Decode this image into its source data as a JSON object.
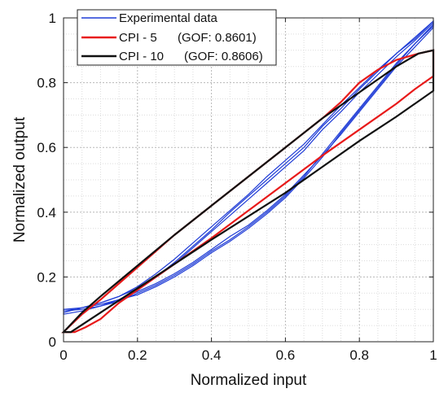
{
  "chart_data": {
    "type": "line",
    "xlabel": "Normalized input",
    "ylabel": "Normalized output",
    "xlim": [
      0,
      1
    ],
    "ylim": [
      0,
      1
    ],
    "xticks": [
      "0",
      "0.2",
      "0.4",
      "0.6",
      "0.8",
      "1"
    ],
    "yticks": [
      "0",
      "0.2",
      "0.4",
      "0.6",
      "0.8",
      "1"
    ],
    "grid": "major-and-minor-dotted",
    "legend_position": "top-left",
    "series": [
      {
        "name": "Experimental data",
        "color": "#1f3cd6",
        "loops": [
          {
            "up": [
              [
                0,
                0.095
              ],
              [
                0.05,
                0.1
              ],
              [
                0.1,
                0.11
              ],
              [
                0.15,
                0.125
              ],
              [
                0.2,
                0.15
              ],
              [
                0.25,
                0.175
              ],
              [
                0.3,
                0.205
              ],
              [
                0.35,
                0.24
              ],
              [
                0.4,
                0.28
              ],
              [
                0.45,
                0.315
              ],
              [
                0.5,
                0.355
              ],
              [
                0.55,
                0.4
              ],
              [
                0.6,
                0.45
              ],
              [
                0.65,
                0.51
              ],
              [
                0.7,
                0.58
              ],
              [
                0.75,
                0.65
              ],
              [
                0.8,
                0.72
              ],
              [
                0.85,
                0.79
              ],
              [
                0.9,
                0.86
              ],
              [
                0.95,
                0.92
              ],
              [
                1,
                0.98
              ]
            ],
            "down": [
              [
                1,
                0.99
              ],
              [
                0.95,
                0.94
              ],
              [
                0.9,
                0.89
              ],
              [
                0.85,
                0.835
              ],
              [
                0.8,
                0.78
              ],
              [
                0.75,
                0.72
              ],
              [
                0.7,
                0.665
              ],
              [
                0.65,
                0.6
              ],
              [
                0.6,
                0.55
              ],
              [
                0.55,
                0.5
              ],
              [
                0.5,
                0.45
              ],
              [
                0.45,
                0.4
              ],
              [
                0.4,
                0.345
              ],
              [
                0.35,
                0.295
              ],
              [
                0.3,
                0.245
              ],
              [
                0.25,
                0.2
              ],
              [
                0.2,
                0.16
              ],
              [
                0.15,
                0.13
              ],
              [
                0.1,
                0.11
              ],
              [
                0.05,
                0.1
              ],
              [
                0,
                0.1
              ]
            ]
          },
          {
            "up": [
              [
                0,
                0.085
              ],
              [
                0.05,
                0.095
              ],
              [
                0.1,
                0.11
              ],
              [
                0.15,
                0.13
              ],
              [
                0.2,
                0.155
              ],
              [
                0.25,
                0.18
              ],
              [
                0.3,
                0.21
              ],
              [
                0.35,
                0.245
              ],
              [
                0.4,
                0.285
              ],
              [
                0.45,
                0.325
              ],
              [
                0.5,
                0.36
              ],
              [
                0.55,
                0.405
              ],
              [
                0.6,
                0.455
              ],
              [
                0.65,
                0.515
              ],
              [
                0.7,
                0.575
              ],
              [
                0.75,
                0.64
              ],
              [
                0.8,
                0.71
              ],
              [
                0.85,
                0.78
              ],
              [
                0.9,
                0.85
              ],
              [
                0.95,
                0.91
              ],
              [
                1,
                0.97
              ]
            ],
            "down": [
              [
                1,
                0.985
              ],
              [
                0.95,
                0.93
              ],
              [
                0.9,
                0.88
              ],
              [
                0.85,
                0.825
              ],
              [
                0.8,
                0.77
              ],
              [
                0.75,
                0.71
              ],
              [
                0.7,
                0.655
              ],
              [
                0.65,
                0.59
              ],
              [
                0.6,
                0.54
              ],
              [
                0.55,
                0.49
              ],
              [
                0.5,
                0.44
              ],
              [
                0.45,
                0.39
              ],
              [
                0.4,
                0.34
              ],
              [
                0.35,
                0.29
              ],
              [
                0.3,
                0.24
              ],
              [
                0.25,
                0.2
              ],
              [
                0.2,
                0.165
              ],
              [
                0.15,
                0.14
              ],
              [
                0.1,
                0.12
              ],
              [
                0.05,
                0.105
              ],
              [
                0,
                0.09
              ]
            ]
          },
          {
            "up": [
              [
                0,
                0.1
              ],
              [
                0.05,
                0.105
              ],
              [
                0.1,
                0.115
              ],
              [
                0.15,
                0.13
              ],
              [
                0.2,
                0.145
              ],
              [
                0.25,
                0.17
              ],
              [
                0.3,
                0.2
              ],
              [
                0.35,
                0.235
              ],
              [
                0.4,
                0.275
              ],
              [
                0.45,
                0.31
              ],
              [
                0.5,
                0.35
              ],
              [
                0.55,
                0.395
              ],
              [
                0.6,
                0.445
              ],
              [
                0.65,
                0.505
              ],
              [
                0.7,
                0.57
              ],
              [
                0.75,
                0.645
              ],
              [
                0.8,
                0.715
              ],
              [
                0.85,
                0.785
              ],
              [
                0.9,
                0.855
              ],
              [
                0.95,
                0.92
              ],
              [
                1,
                0.975
              ]
            ],
            "down": [
              [
                1,
                0.99
              ],
              [
                0.95,
                0.935
              ],
              [
                0.9,
                0.89
              ],
              [
                0.85,
                0.84
              ],
              [
                0.8,
                0.785
              ],
              [
                0.75,
                0.73
              ],
              [
                0.7,
                0.67
              ],
              [
                0.65,
                0.61
              ],
              [
                0.6,
                0.56
              ],
              [
                0.55,
                0.51
              ],
              [
                0.5,
                0.455
              ],
              [
                0.45,
                0.405
              ],
              [
                0.4,
                0.355
              ],
              [
                0.35,
                0.305
              ],
              [
                0.3,
                0.255
              ],
              [
                0.25,
                0.21
              ],
              [
                0.2,
                0.17
              ],
              [
                0.15,
                0.14
              ],
              [
                0.1,
                0.12
              ],
              [
                0.05,
                0.105
              ],
              [
                0,
                0.1
              ]
            ]
          }
        ]
      },
      {
        "name": "CPI - 5",
        "gof": "(GOF: 0.8601)",
        "color": "#e81a1a",
        "up": [
          [
            0,
            0.03
          ],
          [
            0.03,
            0.03
          ],
          [
            0.06,
            0.045
          ],
          [
            0.1,
            0.07
          ],
          [
            0.15,
            0.12
          ],
          [
            0.2,
            0.16
          ],
          [
            0.3,
            0.24
          ],
          [
            0.4,
            0.32
          ],
          [
            0.5,
            0.405
          ],
          [
            0.6,
            0.49
          ],
          [
            0.7,
            0.575
          ],
          [
            0.8,
            0.655
          ],
          [
            0.9,
            0.735
          ],
          [
            0.95,
            0.78
          ],
          [
            1,
            0.82
          ]
        ],
        "down": [
          [
            1,
            0.9
          ],
          [
            0.96,
            0.89
          ],
          [
            0.9,
            0.87
          ],
          [
            0.85,
            0.84
          ],
          [
            0.8,
            0.8
          ],
          [
            0.75,
            0.74
          ],
          [
            0.7,
            0.69
          ],
          [
            0.6,
            0.6
          ],
          [
            0.5,
            0.51
          ],
          [
            0.4,
            0.42
          ],
          [
            0.3,
            0.33
          ],
          [
            0.2,
            0.23
          ],
          [
            0.1,
            0.13
          ],
          [
            0.05,
            0.085
          ],
          [
            0,
            0.03
          ]
        ]
      },
      {
        "name": "CPI - 10",
        "gof": "(GOF: 0.8606)",
        "color": "#111111",
        "up": [
          [
            0,
            0.03
          ],
          [
            0.02,
            0.03
          ],
          [
            0.2,
            0.165
          ],
          [
            0.4,
            0.315
          ],
          [
            0.6,
            0.46
          ],
          [
            0.8,
            0.62
          ],
          [
            0.9,
            0.695
          ],
          [
            1,
            0.775
          ],
          [
            1,
            0.9
          ]
        ],
        "down": [
          [
            1,
            0.9
          ],
          [
            0.96,
            0.89
          ],
          [
            0.9,
            0.85
          ],
          [
            0.8,
            0.77
          ],
          [
            0.7,
            0.69
          ],
          [
            0.6,
            0.6
          ],
          [
            0.5,
            0.51
          ],
          [
            0.4,
            0.42
          ],
          [
            0.3,
            0.33
          ],
          [
            0.2,
            0.235
          ],
          [
            0.1,
            0.14
          ],
          [
            0.05,
            0.09
          ],
          [
            0,
            0.03
          ]
        ]
      }
    ]
  }
}
